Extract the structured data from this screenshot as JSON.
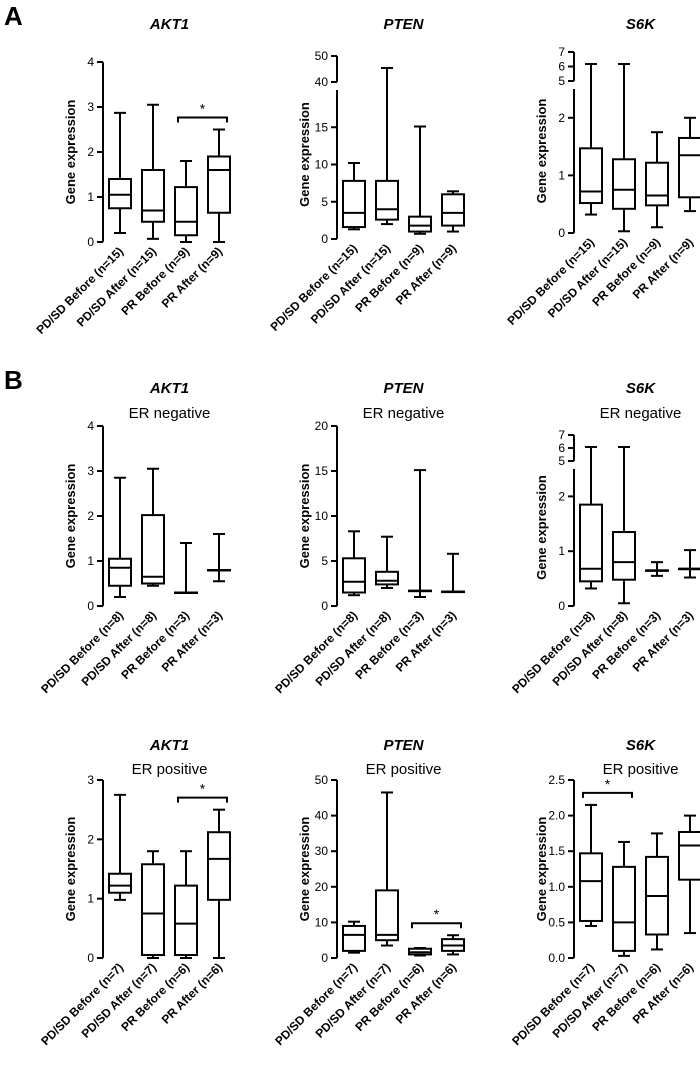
{
  "figure": {
    "panel_labels": [
      "A",
      "B"
    ],
    "y_axis_label": "Gene expression"
  },
  "chart_data": [
    {
      "type": "boxplot",
      "panel": "A",
      "gene": "AKT1",
      "subtitle": "",
      "ylabel": "Gene expression",
      "ylim": [
        0,
        4
      ],
      "yticks": [
        0,
        1,
        2,
        3,
        4
      ],
      "categories": [
        "PD/SD Before (n=15)",
        "PD/SD After (n=15)",
        "PR Before (n=9)",
        "PR After (n=9)"
      ],
      "boxes": [
        {
          "min": 0.2,
          "q1": 0.75,
          "median": 1.05,
          "q3": 1.4,
          "max": 2.87
        },
        {
          "min": 0.07,
          "q1": 0.45,
          "median": 0.7,
          "q3": 1.6,
          "max": 3.05
        },
        {
          "min": 0.0,
          "q1": 0.15,
          "median": 0.45,
          "q3": 1.22,
          "max": 1.8
        },
        {
          "min": 0.0,
          "q1": 0.65,
          "median": 1.6,
          "q3": 1.9,
          "max": 2.5
        }
      ],
      "significance": [
        {
          "from": 2,
          "to": 3,
          "label": "*"
        }
      ]
    },
    {
      "type": "boxplot",
      "panel": "A",
      "gene": "PTEN",
      "subtitle": "",
      "ylabel": "Gene expression",
      "ylim": [
        0,
        20
      ],
      "yticks": [
        0,
        5,
        10,
        15
      ],
      "axis_break": {
        "upper_ticks": [
          40,
          50
        ]
      },
      "categories": [
        "PD/SD Before (n=15)",
        "PD/SD After (n=15)",
        "PR Before (n=9)",
        "PR After (n=9)"
      ],
      "boxes": [
        {
          "min": 1.3,
          "q1": 1.6,
          "median": 3.5,
          "q3": 7.8,
          "max": 10.2
        },
        {
          "min": 2.0,
          "q1": 2.6,
          "median": 4.0,
          "q3": 7.8,
          "max": 46
        },
        {
          "min": 0.7,
          "q1": 1.0,
          "median": 1.8,
          "q3": 3.0,
          "max": 15.1
        },
        {
          "min": 1.0,
          "q1": 1.8,
          "median": 3.5,
          "q3": 6.0,
          "max": 6.4
        }
      ],
      "significance": []
    },
    {
      "type": "boxplot",
      "panel": "A",
      "gene": "S6K",
      "subtitle": "",
      "ylabel": "Gene expression",
      "ylim": [
        0,
        2.5
      ],
      "yticks": [
        0,
        1,
        2
      ],
      "axis_break": {
        "upper_ticks": [
          5,
          6,
          7
        ]
      },
      "categories": [
        "PD/SD Before (n=15)",
        "PD/SD After (n=15)",
        "PR Before (n=9)",
        "PR After (n=9)"
      ],
      "boxes": [
        {
          "min": 0.32,
          "q1": 0.52,
          "median": 0.72,
          "q3": 1.47,
          "max": 6
        },
        {
          "min": 0.03,
          "q1": 0.42,
          "median": 0.75,
          "q3": 1.28,
          "max": 6.5
        },
        {
          "min": 0.1,
          "q1": 0.48,
          "median": 0.65,
          "q3": 1.22,
          "max": 1.75
        },
        {
          "min": 0.38,
          "q1": 0.62,
          "median": 1.35,
          "q3": 1.65,
          "max": 2.0
        }
      ],
      "significance": []
    },
    {
      "type": "boxplot",
      "panel": "B",
      "gene": "AKT1",
      "subtitle": "ER negative",
      "ylabel": "Gene expression",
      "ylim": [
        0,
        4
      ],
      "yticks": [
        0,
        1,
        2,
        3,
        4
      ],
      "categories": [
        "PD/SD Before (n=8)",
        "PD/SD After (n=8)",
        "PR Before (n=3)",
        "PR After (n=3)"
      ],
      "boxes": [
        {
          "min": 0.2,
          "q1": 0.45,
          "median": 0.85,
          "q3": 1.05,
          "max": 2.85
        },
        {
          "min": 0.45,
          "q1": 0.5,
          "median": 0.65,
          "q3": 2.02,
          "max": 3.05
        },
        {
          "min": 0.3,
          "q1": 0.3,
          "median": 0.3,
          "q3": 0.3,
          "max": 1.4
        },
        {
          "min": 0.55,
          "q1": 0.8,
          "median": 0.8,
          "q3": 0.8,
          "max": 1.6
        }
      ],
      "significance": []
    },
    {
      "type": "boxplot",
      "panel": "B",
      "gene": "PTEN",
      "subtitle": "ER negative",
      "ylabel": "Gene expression",
      "ylim": [
        0,
        20
      ],
      "yticks": [
        0,
        5,
        10,
        15,
        20
      ],
      "categories": [
        "PD/SD Before (n=8)",
        "PD/SD After (n=8)",
        "PR Before (n=3)",
        "PR After (n=3)"
      ],
      "boxes": [
        {
          "min": 1.2,
          "q1": 1.5,
          "median": 2.7,
          "q3": 5.3,
          "max": 8.3
        },
        {
          "min": 2.0,
          "q1": 2.4,
          "median": 2.8,
          "q3": 3.8,
          "max": 7.7
        },
        {
          "min": 1.0,
          "q1": 1.7,
          "median": 1.7,
          "q3": 1.7,
          "max": 15.1
        },
        {
          "min": 1.6,
          "q1": 1.6,
          "median": 1.6,
          "q3": 1.6,
          "max": 5.8
        }
      ],
      "significance": []
    },
    {
      "type": "boxplot",
      "panel": "B",
      "gene": "S6K",
      "subtitle": "ER negative",
      "ylabel": "Gene expression",
      "ylim": [
        0,
        2.5
      ],
      "yticks": [
        0,
        1,
        2
      ],
      "axis_break": {
        "upper_ticks": [
          5,
          6,
          7
        ]
      },
      "categories": [
        "PD/SD Before (n=8)",
        "PD/SD After (n=8)",
        "PR Before (n=3)",
        "PR After (n=3)"
      ],
      "boxes": [
        {
          "min": 0.32,
          "q1": 0.45,
          "median": 0.68,
          "q3": 1.85,
          "max": 6
        },
        {
          "min": 0.05,
          "q1": 0.48,
          "median": 0.8,
          "q3": 1.35,
          "max": 6.5
        },
        {
          "min": 0.55,
          "q1": 0.65,
          "median": 0.65,
          "q3": 0.65,
          "max": 0.8
        },
        {
          "min": 0.52,
          "q1": 0.68,
          "median": 0.68,
          "q3": 0.68,
          "max": 1.02
        }
      ],
      "significance": []
    },
    {
      "type": "boxplot",
      "panel": "B",
      "gene": "AKT1",
      "subtitle": "ER positive",
      "ylabel": "Gene expression",
      "ylim": [
        0,
        3
      ],
      "yticks": [
        0,
        1,
        2,
        3
      ],
      "categories": [
        "PD/SD Before (n=7)",
        "PD/SD After (n=7)",
        "PR Before (n=6)",
        "PR After (n=6)"
      ],
      "boxes": [
        {
          "min": 0.98,
          "q1": 1.1,
          "median": 1.22,
          "q3": 1.42,
          "max": 2.75
        },
        {
          "min": 0.0,
          "q1": 0.05,
          "median": 0.75,
          "q3": 1.58,
          "max": 1.8
        },
        {
          "min": 0.0,
          "q1": 0.05,
          "median": 0.58,
          "q3": 1.22,
          "max": 1.8
        },
        {
          "min": 0.0,
          "q1": 0.98,
          "median": 1.67,
          "q3": 2.12,
          "max": 2.5
        }
      ],
      "significance": [
        {
          "from": 2,
          "to": 3,
          "label": "*"
        }
      ]
    },
    {
      "type": "boxplot",
      "panel": "B",
      "gene": "PTEN",
      "subtitle": "ER positive",
      "ylabel": "Gene expression",
      "ylim": [
        0,
        50
      ],
      "yticks": [
        0,
        10,
        20,
        30,
        40,
        50
      ],
      "categories": [
        "PD/SD Before (n=7)",
        "PD/SD After (n=7)",
        "PR Before (n=6)",
        "PR After (n=6)"
      ],
      "boxes": [
        {
          "min": 1.5,
          "q1": 2.0,
          "median": 6.5,
          "q3": 9.0,
          "max": 10.2
        },
        {
          "min": 3.5,
          "q1": 5.0,
          "median": 6.5,
          "q3": 19.0,
          "max": 46.5
        },
        {
          "min": 0.7,
          "q1": 1.0,
          "median": 1.6,
          "q3": 2.6,
          "max": 2.8
        },
        {
          "min": 1.0,
          "q1": 2.0,
          "median": 3.5,
          "q3": 5.3,
          "max": 6.4
        }
      ],
      "significance": [
        {
          "from": 2,
          "to": 3,
          "label": "*"
        }
      ]
    },
    {
      "type": "boxplot",
      "panel": "B",
      "gene": "S6K",
      "subtitle": "ER positive",
      "ylabel": "Gene expression",
      "ylim": [
        0,
        2.5
      ],
      "yticks": [
        0.0,
        0.5,
        1.0,
        1.5,
        2.0,
        2.5
      ],
      "categories": [
        "PD/SD Before (n=7)",
        "PD/SD After (n=7)",
        "PR Before (n=6)",
        "PR After (n=6)"
      ],
      "boxes": [
        {
          "min": 0.45,
          "q1": 0.52,
          "median": 1.08,
          "q3": 1.47,
          "max": 2.15
        },
        {
          "min": 0.03,
          "q1": 0.1,
          "median": 0.5,
          "q3": 1.28,
          "max": 1.63
        },
        {
          "min": 0.12,
          "q1": 0.33,
          "median": 0.87,
          "q3": 1.42,
          "max": 1.75
        },
        {
          "min": 0.35,
          "q1": 1.1,
          "median": 1.58,
          "q3": 1.77,
          "max": 2.0
        }
      ],
      "significance": [
        {
          "from": 0,
          "to": 1,
          "label": "*"
        }
      ]
    }
  ]
}
